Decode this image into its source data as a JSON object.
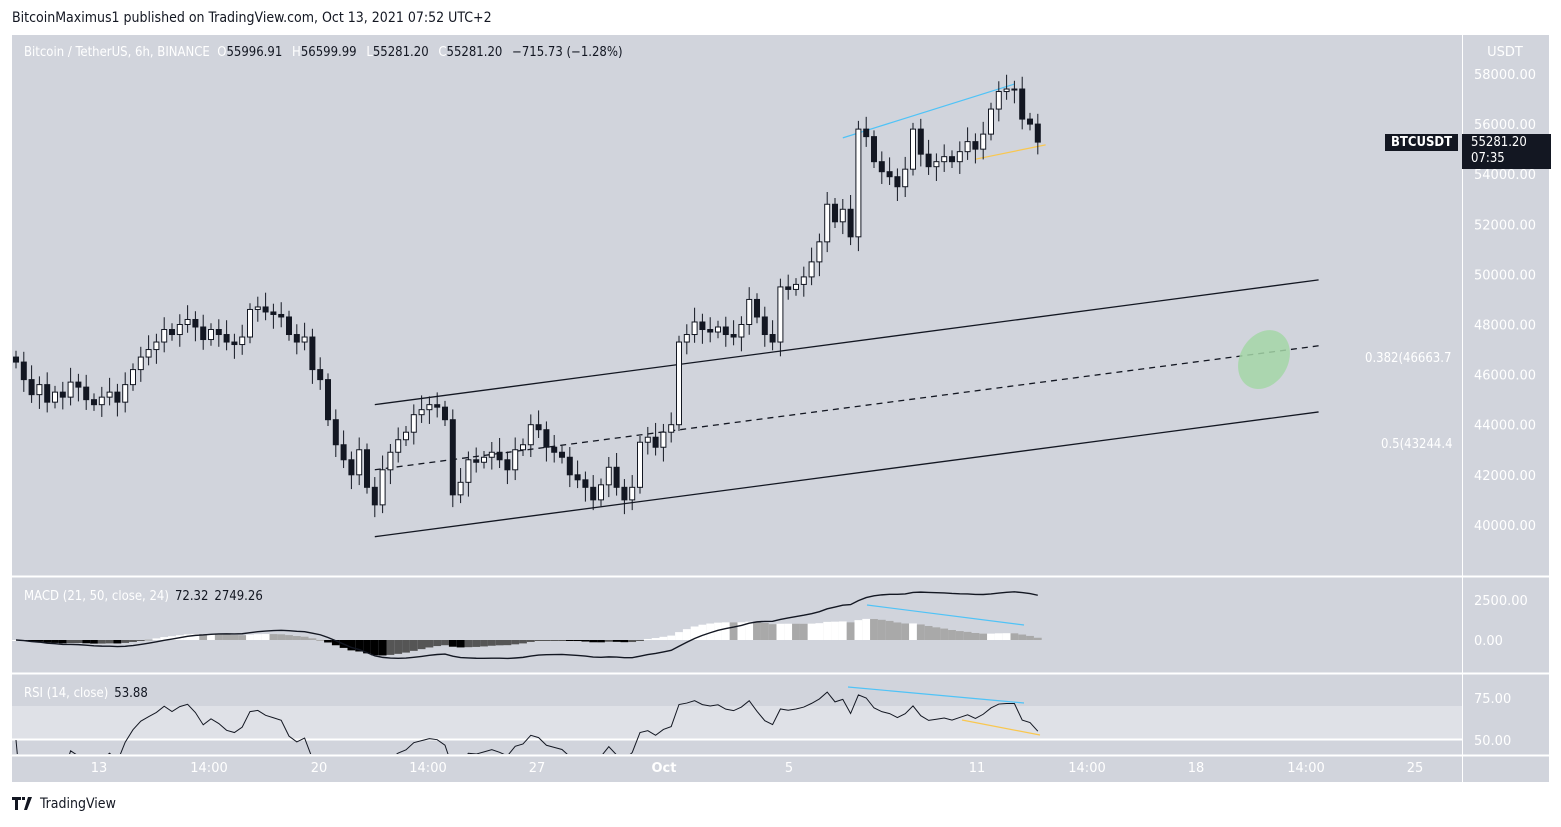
{
  "header": {
    "published": "BitcoinMaximus1 published on TradingView.com, Oct 13, 2021 07:52 UTC+2"
  },
  "legend": {
    "symbol": "Bitcoin / TetherUS, 6h, BINANCE",
    "o_label": "O",
    "o": "55996.91",
    "h_label": "H",
    "h": "56599.99",
    "l_label": "L",
    "l": "55281.20",
    "c_label": "C",
    "c": "55281.20",
    "change": "−715.73 (−1.28%)"
  },
  "price_axis": {
    "currency": "USDT",
    "ticks": [
      "58000.00",
      "56000.00",
      "54000.00",
      "52000.00",
      "50000.00",
      "48000.00",
      "46000.00",
      "44000.00",
      "42000.00",
      "40000.00"
    ]
  },
  "price_tag": {
    "symbol": "BTCUSDT",
    "price": "55281.20",
    "countdown": "07:35"
  },
  "fib_labels": [
    "0.382(46663.7",
    "0.5(43244.4"
  ],
  "macd": {
    "label": "MACD (21, 50, close, 24)",
    "hist": "72.32",
    "macd": "2749.26",
    "ticks": [
      "2500.00",
      "0.00"
    ]
  },
  "rsi": {
    "label": "RSI (14, close)",
    "value": "53.88",
    "ticks": [
      "75.00",
      "50.00"
    ]
  },
  "time_axis": {
    "labels": [
      "13",
      "14:00",
      "20",
      "14:00",
      "27",
      "Oct",
      "5",
      "11",
      "14:00",
      "18",
      "14:00",
      "25"
    ]
  },
  "footer": {
    "brand": "TradingView"
  },
  "colors": {
    "background": "#d1d4dc",
    "up": "#ffffff",
    "down": "#131722",
    "blue_trend": "#4fc3f7",
    "orange_trend": "#f9c74f",
    "target_zone": "#a5d6a7"
  },
  "chart_data": {
    "type": "candlestick",
    "interval": "6h",
    "closes": [
      46500,
      45800,
      45200,
      45600,
      44900,
      45300,
      45100,
      45700,
      45500,
      45000,
      44800,
      45100,
      45300,
      44900,
      45600,
      46200,
      46700,
      47000,
      47300,
      47800,
      47600,
      48000,
      48200,
      47900,
      47400,
      47800,
      47600,
      47300,
      47200,
      47500,
      48600,
      48700,
      48500,
      48400,
      48300,
      47600,
      47300,
      47500,
      46200,
      45800,
      44200,
      43200,
      42600,
      42000,
      43000,
      41500,
      40800,
      42200,
      42900,
      43400,
      43700,
      44400,
      44600,
      44800,
      44700,
      44200,
      41200,
      41700,
      42600,
      42500,
      42700,
      42900,
      42600,
      42200,
      43000,
      43200,
      44000,
      43800,
      43100,
      42900,
      42700,
      42000,
      41800,
      41500,
      41000,
      41600,
      42300,
      41500,
      41000,
      41500,
      43300,
      43500,
      43100,
      43700,
      44000,
      47300,
      47600,
      48100,
      47800,
      47700,
      47900,
      47600,
      47500,
      48000,
      49000,
      48300,
      47600,
      47300,
      49500,
      49400,
      49600,
      49900,
      50500,
      51300,
      52800,
      52100,
      52600,
      51500,
      55800,
      55500,
      54500,
      54100,
      53900,
      53500,
      54200,
      55800,
      54800,
      54300,
      54500,
      54700,
      54500,
      54900,
      55300,
      55000,
      55600,
      56600,
      57300,
      57400,
      57400,
      56200,
      56000,
      55281.2
    ],
    "ylim": [
      39000,
      59000
    ],
    "drawings": {
      "channel_upper": [
        [
          46,
          44800
        ],
        [
          167,
          49780
        ]
      ],
      "channel_mid": [
        [
          46,
          42200
        ],
        [
          167,
          47150
        ]
      ],
      "channel_lower": [
        [
          46,
          39530
        ],
        [
          167,
          44510
        ]
      ],
      "blue_trend_price": [
        [
          106,
          55450
        ],
        [
          128,
          57600
        ]
      ],
      "orange_trend_price": [
        [
          123,
          54600
        ],
        [
          132,
          55170
        ]
      ],
      "target_zone": [
        160,
        46600
      ]
    }
  }
}
